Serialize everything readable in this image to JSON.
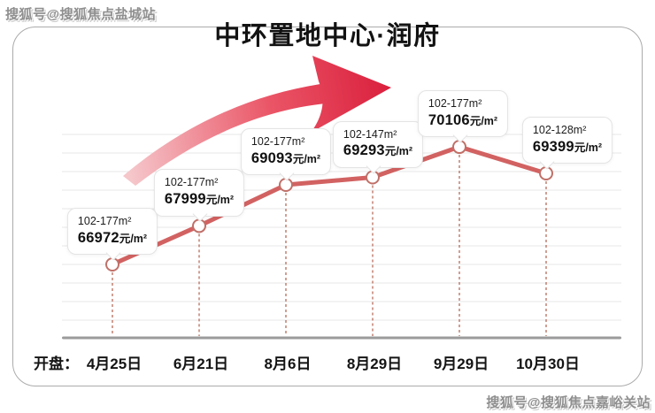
{
  "title": "中环置地中心·润府",
  "watermarks": {
    "top_left": "搜狐号@搜狐焦点盐城站",
    "bottom_right": "搜狐号@搜狐焦点嘉峪关站"
  },
  "x_axis": {
    "prefix": "开盘："
  },
  "chart_data": {
    "type": "line",
    "title": "中环置地中心·润府",
    "categories": [
      "4月25日",
      "6月21日",
      "8月6日",
      "8月29日",
      "9月29日",
      "10月30日"
    ],
    "values": [
      66972,
      67999,
      69093,
      69293,
      70106,
      69399
    ],
    "areas": [
      "102-177m²",
      "102-177m²",
      "102-177m²",
      "102-147m²",
      "102-177m²",
      "102-128m²"
    ],
    "unit": "元/m²",
    "xlabel": "开盘：",
    "ylabel": "",
    "ylim": [
      66500,
      70500
    ],
    "grid": true,
    "legend": "none",
    "trend_arrow": true
  },
  "colors": {
    "line": "#d26262",
    "point_fill": "#ffffff",
    "point_stroke": "#c07068",
    "dropline": "#b2604e",
    "axis": "#9b9b9b",
    "grid": "#e7e7e7",
    "arrow_start": "#f5c6ca",
    "arrow_mid": "#ea5566",
    "arrow_end": "#da1f3d",
    "title_text": "#121212"
  }
}
